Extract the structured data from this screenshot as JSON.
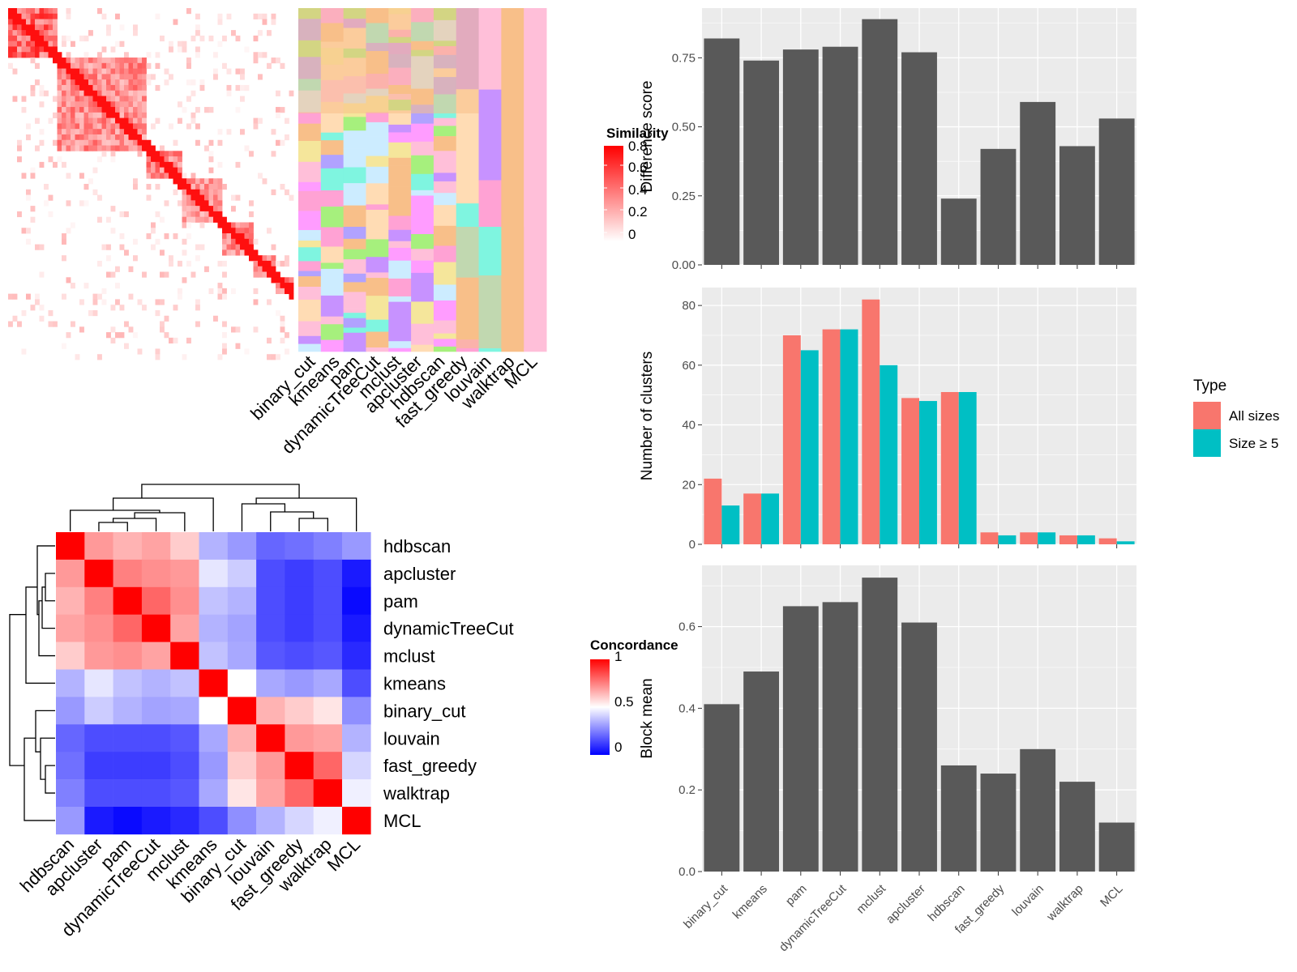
{
  "similarity_panel": {
    "legend_title": "Similarity",
    "legend_ticks": [
      "0.8",
      "0.6",
      "0.4",
      "0.2",
      "0"
    ],
    "method_labels": [
      "binary_cut",
      "kmeans",
      "pam",
      "dynamicTreeCut",
      "mclust",
      "apcluster",
      "hdbscan",
      "fast_greedy",
      "louvain",
      "walktrap",
      "MCL"
    ]
  },
  "concordance_panel": {
    "legend_title": "Concordance",
    "legend_ticks": [
      "1",
      "0.5",
      "0"
    ],
    "row_labels": [
      "hdbscan",
      "apcluster",
      "pam",
      "dynamicTreeCut",
      "mclust",
      "kmeans",
      "binary_cut",
      "louvain",
      "fast_greedy",
      "walktrap",
      "MCL"
    ],
    "col_labels": [
      "hdbscan",
      "apcluster",
      "pam",
      "dynamicTreeCut",
      "mclust",
      "kmeans",
      "binary_cut",
      "louvain",
      "fast_greedy",
      "walktrap",
      "MCL"
    ]
  },
  "legend_type": {
    "title": "Type",
    "items": [
      {
        "label": "All sizes",
        "color": "#f8766d"
      },
      {
        "label": "Size ≥ 5",
        "color": "#00bfc4"
      }
    ]
  },
  "colors": {
    "bar": "#595959",
    "panel_bg": "#ebebeb",
    "grid": "#ffffff",
    "high": "#ff0000",
    "low": "#0000ff"
  },
  "chart_data": [
    {
      "type": "heatmap",
      "title": "",
      "legend_title": "Concordance",
      "rows": [
        "hdbscan",
        "apcluster",
        "pam",
        "dynamicTreeCut",
        "mclust",
        "kmeans",
        "binary_cut",
        "louvain",
        "fast_greedy",
        "walktrap",
        "MCL"
      ],
      "cols": [
        "hdbscan",
        "apcluster",
        "pam",
        "dynamicTreeCut",
        "mclust",
        "kmeans",
        "binary_cut",
        "louvain",
        "fast_greedy",
        "walktrap",
        "MCL"
      ],
      "values": [
        [
          1.0,
          0.7,
          0.65,
          0.68,
          0.6,
          0.35,
          0.3,
          0.2,
          0.22,
          0.25,
          0.3
        ],
        [
          0.7,
          1.0,
          0.75,
          0.72,
          0.7,
          0.45,
          0.4,
          0.15,
          0.12,
          0.15,
          0.05
        ],
        [
          0.65,
          0.75,
          1.0,
          0.8,
          0.72,
          0.38,
          0.35,
          0.15,
          0.12,
          0.15,
          0.02
        ],
        [
          0.68,
          0.72,
          0.8,
          1.0,
          0.68,
          0.35,
          0.32,
          0.15,
          0.12,
          0.15,
          0.05
        ],
        [
          0.6,
          0.7,
          0.72,
          0.68,
          1.0,
          0.38,
          0.33,
          0.17,
          0.15,
          0.17,
          0.08
        ],
        [
          0.35,
          0.45,
          0.38,
          0.35,
          0.38,
          1.0,
          0.5,
          0.33,
          0.3,
          0.33,
          0.15
        ],
        [
          0.3,
          0.4,
          0.35,
          0.32,
          0.33,
          0.5,
          1.0,
          0.65,
          0.6,
          0.55,
          0.28
        ],
        [
          0.2,
          0.15,
          0.15,
          0.15,
          0.17,
          0.33,
          0.65,
          1.0,
          0.7,
          0.68,
          0.35
        ],
        [
          0.22,
          0.12,
          0.12,
          0.12,
          0.15,
          0.3,
          0.6,
          0.7,
          1.0,
          0.8,
          0.42
        ],
        [
          0.25,
          0.15,
          0.15,
          0.15,
          0.17,
          0.33,
          0.55,
          0.68,
          0.8,
          1.0,
          0.47
        ],
        [
          0.3,
          0.05,
          0.02,
          0.05,
          0.08,
          0.15,
          0.28,
          0.35,
          0.42,
          0.47,
          1.0
        ]
      ],
      "scale": [
        0,
        1
      ]
    },
    {
      "type": "bar",
      "title": "",
      "categories": [
        "binary_cut",
        "kmeans",
        "pam",
        "dynamicTreeCut",
        "mclust",
        "apcluster",
        "hdbscan",
        "fast_greedy",
        "louvain",
        "walktrap",
        "MCL"
      ],
      "values": [
        0.82,
        0.74,
        0.78,
        0.79,
        0.89,
        0.77,
        0.24,
        0.42,
        0.59,
        0.43,
        0.53
      ],
      "xlabel": "",
      "ylabel": "Difference score",
      "ylim": [
        0,
        0.93
      ],
      "yticks": [
        0,
        0.25,
        0.5,
        0.75
      ],
      "ytick_labels": [
        "0.00",
        "0.25",
        "0.50",
        "0.75"
      ],
      "grid": true
    },
    {
      "type": "bar",
      "title": "",
      "categories": [
        "binary_cut",
        "kmeans",
        "pam",
        "dynamicTreeCut",
        "mclust",
        "apcluster",
        "hdbscan",
        "fast_greedy",
        "louvain",
        "walktrap",
        "MCL"
      ],
      "series": [
        {
          "name": "All sizes",
          "values": [
            22,
            17,
            70,
            72,
            82,
            49,
            51,
            4,
            4,
            3,
            2
          ]
        },
        {
          "name": "Size ≥ 5",
          "values": [
            13,
            17,
            65,
            72,
            60,
            48,
            51,
            3,
            4,
            3,
            1
          ]
        }
      ],
      "xlabel": "",
      "ylabel": "Number of clusters",
      "ylim": [
        0,
        86
      ],
      "yticks": [
        0,
        20,
        40,
        60,
        80
      ],
      "ytick_labels": [
        "0",
        "20",
        "40",
        "60",
        "80"
      ],
      "legend": "right",
      "grid": true
    },
    {
      "type": "bar",
      "title": "",
      "categories": [
        "binary_cut",
        "kmeans",
        "pam",
        "dynamicTreeCut",
        "mclust",
        "apcluster",
        "hdbscan",
        "fast_greedy",
        "louvain",
        "walktrap",
        "MCL"
      ],
      "values": [
        0.41,
        0.49,
        0.65,
        0.66,
        0.72,
        0.61,
        0.26,
        0.24,
        0.3,
        0.22,
        0.12
      ],
      "xlabel": "",
      "ylabel": "Block mean",
      "ylim": [
        0,
        0.75
      ],
      "yticks": [
        0,
        0.2,
        0.4,
        0.6
      ],
      "ytick_labels": [
        "0.0",
        "0.2",
        "0.4",
        "0.6"
      ],
      "grid": true
    }
  ]
}
